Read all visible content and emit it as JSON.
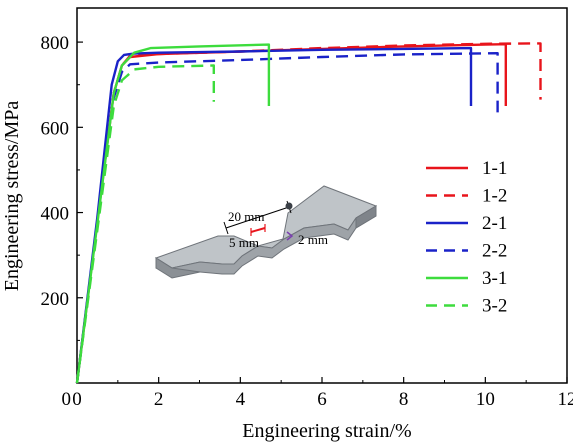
{
  "chart_data": {
    "type": "line",
    "xlabel": "Engineering strain/%",
    "ylabel": "Engineering stress/MPa",
    "xlim": [
      0,
      12
    ],
    "ylim": [
      0,
      880
    ],
    "x_ticks": [
      0,
      2,
      4,
      6,
      8,
      10,
      12
    ],
    "y_ticks": [
      200,
      400,
      600,
      800
    ],
    "grid": false,
    "legend_position": "right",
    "series": [
      {
        "name": "1-1",
        "color": "#e8141b",
        "dash": "solid",
        "points": [
          [
            0,
            0
          ],
          [
            0.5,
            380
          ],
          [
            0.9,
            680
          ],
          [
            1.1,
            745
          ],
          [
            1.3,
            765
          ],
          [
            2,
            772
          ],
          [
            4,
            778
          ],
          [
            6,
            784
          ],
          [
            8,
            790
          ],
          [
            10,
            794
          ],
          [
            10.5,
            795
          ],
          [
            10.5,
            650
          ]
        ]
      },
      {
        "name": "1-2",
        "color": "#e8141b",
        "dash": "dashed",
        "points": [
          [
            0,
            0
          ],
          [
            0.5,
            380
          ],
          [
            0.9,
            680
          ],
          [
            1.1,
            745
          ],
          [
            1.3,
            768
          ],
          [
            2,
            772
          ],
          [
            4,
            778
          ],
          [
            6,
            786
          ],
          [
            8,
            792
          ],
          [
            10,
            796
          ],
          [
            11.35,
            797
          ],
          [
            11.35,
            665
          ]
        ]
      },
      {
        "name": "2-1",
        "color": "#1a22c8",
        "dash": "solid",
        "points": [
          [
            0,
            0
          ],
          [
            0.5,
            390
          ],
          [
            0.85,
            700
          ],
          [
            1.0,
            755
          ],
          [
            1.15,
            770
          ],
          [
            1.4,
            773
          ],
          [
            2,
            775
          ],
          [
            4,
            778
          ],
          [
            6,
            782
          ],
          [
            8,
            784
          ],
          [
            9.65,
            786
          ],
          [
            9.65,
            650
          ]
        ]
      },
      {
        "name": "2-2",
        "color": "#1a22c8",
        "dash": "dashed",
        "points": [
          [
            0,
            0
          ],
          [
            0.5,
            370
          ],
          [
            0.9,
            670
          ],
          [
            1.1,
            730
          ],
          [
            1.3,
            748
          ],
          [
            2,
            752
          ],
          [
            4,
            758
          ],
          [
            6,
            765
          ],
          [
            8,
            771
          ],
          [
            10.3,
            774
          ],
          [
            10.3,
            635
          ]
        ]
      },
      {
        "name": "3-1",
        "color": "#3ddc3d",
        "dash": "solid",
        "points": [
          [
            0,
            0
          ],
          [
            0.5,
            375
          ],
          [
            0.9,
            680
          ],
          [
            1.1,
            745
          ],
          [
            1.4,
            775
          ],
          [
            1.8,
            786
          ],
          [
            3,
            790
          ],
          [
            4.7,
            794
          ],
          [
            4.7,
            650
          ]
        ]
      },
      {
        "name": "3-2",
        "color": "#3ddc3d",
        "dash": "dashed",
        "points": [
          [
            0,
            0
          ],
          [
            0.5,
            360
          ],
          [
            0.9,
            650
          ],
          [
            1.1,
            710
          ],
          [
            1.4,
            736
          ],
          [
            2,
            742
          ],
          [
            3.35,
            745
          ],
          [
            3.35,
            660
          ]
        ]
      }
    ],
    "inset": {
      "dim_length": "20 mm",
      "dim_gauge": "5 mm",
      "dim_thickness": "2 mm"
    }
  }
}
